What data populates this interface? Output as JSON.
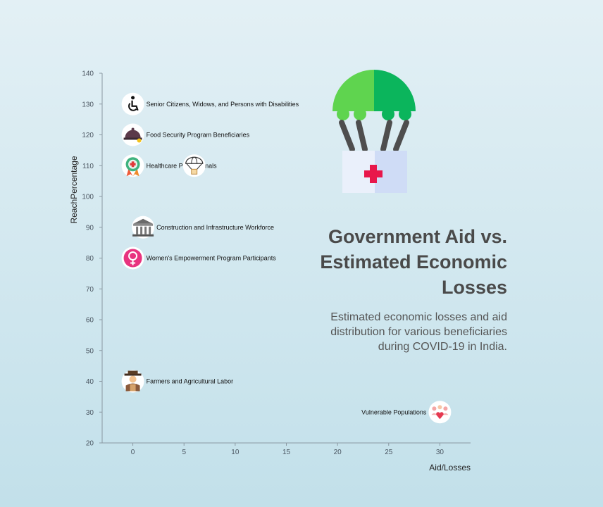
{
  "header": {
    "title": "Government Aid vs. Estimated Economic Losses",
    "subtitle": "Estimated economic losses and aid distribution for various beneficiaries during COVID-19 in India."
  },
  "decoration": {
    "icon": "parachute-aid-icon"
  },
  "chart_data": {
    "type": "scatter",
    "xlabel": "Aid/Losses",
    "ylabel": "ReachPercentage",
    "xlim": [
      -3,
      33
    ],
    "ylim": [
      20,
      140
    ],
    "xticks": [
      0,
      5,
      10,
      15,
      20,
      25,
      30
    ],
    "yticks": [
      20,
      30,
      40,
      50,
      60,
      70,
      80,
      90,
      100,
      110,
      120,
      130,
      140
    ],
    "grid": false,
    "points": [
      {
        "x": 0,
        "y": 130,
        "label": "Senior Citizens, Widows, and Persons with Disabilities",
        "icon": "wheelchair-icon"
      },
      {
        "x": 0,
        "y": 120,
        "label": "Food Security Program Beneficiaries",
        "icon": "food-cloche-icon"
      },
      {
        "x": 0,
        "y": 110,
        "label": "Healthcare Professionals",
        "icon": "medical-badge-icon"
      },
      {
        "x": 1,
        "y": 90,
        "label": "Construction and Infrastructure Workforce",
        "icon": "bank-building-icon"
      },
      {
        "x": 0,
        "y": 80,
        "label": "Women's Empowerment Program Participants",
        "icon": "female-symbol-icon"
      },
      {
        "x": 0,
        "y": 40,
        "label": "Farmers and Agricultural Labor",
        "icon": "farmer-icon"
      },
      {
        "x": 30,
        "y": 30,
        "label": "Vulnerable Populations",
        "icon": "community-heart-icon"
      },
      {
        "x": 6,
        "y": 110,
        "label": "",
        "icon": "parachute-aid-icon"
      }
    ],
    "colors": {
      "axis": "#8a98a2",
      "text": "#111111"
    }
  }
}
